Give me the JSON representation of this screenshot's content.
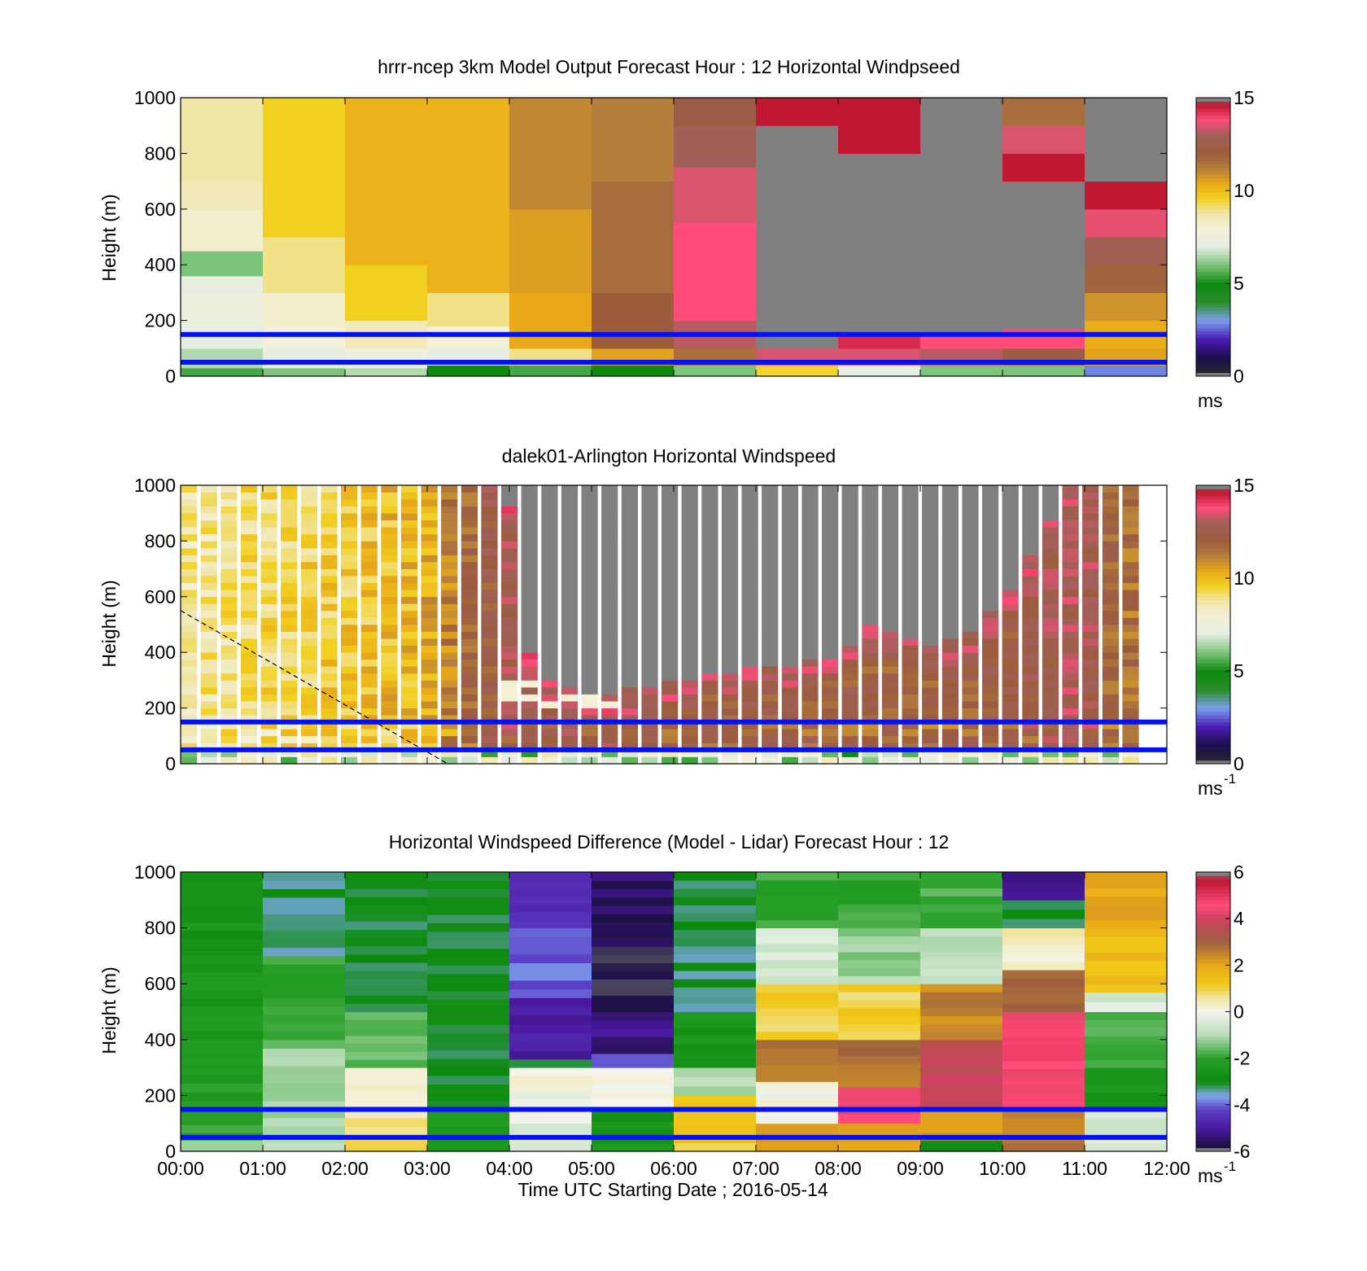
{
  "chart_data": [
    {
      "type": "heatmap",
      "title": "hrrr-ncep 3km Model Output   Forecast Hour : 12 Horizontal Windpseed",
      "ylabel": "Height (m)",
      "xlabel": "",
      "ylim": [
        0,
        1000
      ],
      "yticks": [
        "0",
        "200",
        "400",
        "600",
        "800",
        "1000"
      ],
      "colorbar": {
        "ticks": [
          "0",
          "5",
          "10",
          "15"
        ],
        "range": [
          0,
          15
        ],
        "unit": "ms",
        "unit_sup": ""
      },
      "reference_lines_m": [
        50,
        150
      ],
      "columns": [
        {
          "segments": [
            [
              0,
              30,
              5.5
            ],
            [
              30,
              100,
              6.5
            ],
            [
              100,
              180,
              7.0
            ],
            [
              180,
              300,
              7.5
            ],
            [
              300,
              360,
              7.2
            ],
            [
              360,
              450,
              6.0
            ],
            [
              450,
              600,
              8.2
            ],
            [
              600,
              700,
              8.5
            ],
            [
              700,
              1000,
              8.8
            ]
          ]
        },
        {
          "segments": [
            [
              0,
              30,
              6.0
            ],
            [
              30,
              100,
              7.0
            ],
            [
              100,
              180,
              7.8
            ],
            [
              180,
              300,
              8.2
            ],
            [
              300,
              500,
              9.0
            ],
            [
              500,
              1000,
              9.6
            ]
          ]
        },
        {
          "segments": [
            [
              0,
              30,
              6.5
            ],
            [
              30,
              100,
              7.5
            ],
            [
              100,
              200,
              8.5
            ],
            [
              200,
              400,
              9.6
            ],
            [
              400,
              1000,
              10.2
            ]
          ]
        },
        {
          "segments": [
            [
              0,
              40,
              5.0
            ],
            [
              40,
              100,
              7.0
            ],
            [
              100,
              180,
              8.0
            ],
            [
              180,
              300,
              9.0
            ],
            [
              300,
              1000,
              10.2
            ]
          ]
        },
        {
          "segments": [
            [
              0,
              40,
              5.5
            ],
            [
              40,
              100,
              9.0
            ],
            [
              100,
              300,
              10.4
            ],
            [
              300,
              600,
              10.6
            ],
            [
              600,
              1000,
              11.0
            ]
          ]
        },
        {
          "segments": [
            [
              0,
              40,
              5.0
            ],
            [
              40,
              100,
              10.5
            ],
            [
              100,
              300,
              12.0
            ],
            [
              300,
              700,
              11.6
            ],
            [
              700,
              1000,
              11.2
            ]
          ]
        },
        {
          "segments": [
            [
              0,
              40,
              6.0
            ],
            [
              40,
              100,
              11.5
            ],
            [
              100,
              200,
              13.2
            ],
            [
              200,
              550,
              13.8
            ],
            [
              550,
              750,
              13.5
            ],
            [
              750,
              900,
              13.0
            ],
            [
              900,
              1000,
              12.3
            ]
          ]
        },
        {
          "segments": [
            [
              0,
              40,
              9.5
            ],
            [
              40,
              100,
              13.5
            ],
            [
              100,
              900,
              15.5
            ],
            [
              900,
              1000,
              14.6
            ]
          ]
        },
        {
          "segments": [
            [
              0,
              40,
              7.0
            ],
            [
              40,
              100,
              13.5
            ],
            [
              100,
              150,
              14.3
            ],
            [
              150,
              800,
              15.5
            ],
            [
              800,
              1000,
              14.6
            ]
          ]
        },
        {
          "segments": [
            [
              0,
              40,
              6.0
            ],
            [
              40,
              100,
              13.2
            ],
            [
              100,
              150,
              13.8
            ],
            [
              150,
              1000,
              15.5
            ]
          ]
        },
        {
          "segments": [
            [
              0,
              40,
              6.0
            ],
            [
              40,
              100,
              12.3
            ],
            [
              100,
              170,
              13.8
            ],
            [
              170,
              700,
              15.5
            ],
            [
              700,
              800,
              14.6
            ],
            [
              800,
              900,
              13.5
            ],
            [
              900,
              1000,
              11.6
            ]
          ]
        },
        {
          "segments": [
            [
              0,
              40,
              2.8
            ],
            [
              40,
              100,
              10.5
            ],
            [
              100,
              200,
              10.3
            ],
            [
              200,
              300,
              10.8
            ],
            [
              300,
              400,
              11.8
            ],
            [
              400,
              500,
              12.8
            ],
            [
              500,
              600,
              13.6
            ],
            [
              600,
              700,
              14.6
            ],
            [
              700,
              1000,
              15.5
            ]
          ]
        }
      ]
    },
    {
      "type": "heatmap",
      "title": "dalek01-Arlington  Horizontal Windspeed",
      "ylabel": "Height (m)",
      "xlabel": "",
      "ylim": [
        0,
        1000
      ],
      "yticks": [
        "0",
        "200",
        "400",
        "600",
        "800",
        "1000"
      ],
      "colorbar": {
        "ticks": [
          "0",
          "5",
          "10",
          "15"
        ],
        "range": [
          0,
          15
        ],
        "unit": "ms",
        "unit_sup": "-1"
      },
      "reference_lines_m": [
        50,
        150
      ],
      "dashed_line": {
        "x": [
          0,
          3.25
        ],
        "y": [
          550,
          0
        ]
      },
      "profile_count": 48,
      "profile_anchors": [
        {
          "t": 0.0,
          "speed": 9.5,
          "gray_from": 1100
        },
        {
          "t": 1.0,
          "speed": 10.0,
          "gray_from": 1100
        },
        {
          "t": 2.0,
          "speed": 10.4,
          "gray_from": 1100
        },
        {
          "t": 3.0,
          "speed": 11.0,
          "gray_from": 1100
        },
        {
          "t": 3.5,
          "speed": 12.6,
          "gray_from": 1100
        },
        {
          "t": 4.0,
          "speed": 13.6,
          "gray_from": 960
        },
        {
          "t": 4.3,
          "speed": 13.6,
          "gray_from": 330
        },
        {
          "t": 5.0,
          "speed": 13.3,
          "gray_from": 215
        },
        {
          "t": 6.0,
          "speed": 13.2,
          "gray_from": 290
        },
        {
          "t": 7.0,
          "speed": 13.0,
          "gray_from": 330
        },
        {
          "t": 8.0,
          "speed": 13.0,
          "gray_from": 360
        },
        {
          "t": 8.5,
          "speed": 12.8,
          "gray_from": 500
        },
        {
          "t": 9.0,
          "speed": 12.8,
          "gray_from": 410
        },
        {
          "t": 9.5,
          "speed": 12.8,
          "gray_from": 430
        },
        {
          "t": 10.0,
          "speed": 13.0,
          "gray_from": 560
        },
        {
          "t": 10.5,
          "speed": 13.4,
          "gray_from": 800
        },
        {
          "t": 11.0,
          "speed": 13.8,
          "gray_from": 1100
        },
        {
          "t": 11.5,
          "speed": 12.2,
          "gray_from": 1100
        },
        {
          "t": 12.0,
          "speed": 13.0,
          "gray_from": 1100
        }
      ]
    },
    {
      "type": "heatmap",
      "title": "Horizontal Windspeed Difference (Model - Lidar) Forecast Hour : 12",
      "ylabel": "Height (m)",
      "xlabel": "Time UTC  Starting Date ; 2016-05-14",
      "ylim": [
        0,
        1000
      ],
      "yticks": [
        "0",
        "200",
        "400",
        "600",
        "800",
        "1000"
      ],
      "colorbar": {
        "ticks": [
          "-6",
          "-4",
          "-2",
          "0",
          "2",
          "4",
          "6"
        ],
        "range": [
          -6,
          6
        ],
        "unit": "ms",
        "unit_sup": "-1"
      },
      "reference_lines_m": [
        50,
        150
      ],
      "columns": [
        {
          "segments": [
            [
              0,
              40,
              -1.0
            ],
            [
              40,
              150,
              -2.0
            ],
            [
              150,
              400,
              -2.2
            ],
            [
              400,
              700,
              -2.4
            ],
            [
              700,
              1000,
              -2.6
            ]
          ]
        },
        {
          "segments": [
            [
              0,
              150,
              -1.0
            ],
            [
              150,
              400,
              -1.3
            ],
            [
              400,
              700,
              -2.0
            ],
            [
              700,
              1000,
              -3.2
            ]
          ]
        },
        {
          "segments": [
            [
              0,
              60,
              0.8
            ],
            [
              60,
              150,
              0.6
            ],
            [
              150,
              300,
              0.0
            ],
            [
              300,
              500,
              -1.6
            ],
            [
              500,
              1000,
              -3.0
            ]
          ]
        },
        {
          "segments": [
            [
              0,
              60,
              -2.6
            ],
            [
              60,
              150,
              -2.4
            ],
            [
              150,
              1000,
              -3.0
            ]
          ]
        },
        {
          "segments": [
            [
              0,
              100,
              -0.4
            ],
            [
              100,
              300,
              0.0
            ],
            [
              300,
              330,
              -3.0
            ],
            [
              330,
              550,
              -5.0
            ],
            [
              550,
              800,
              -4.0
            ],
            [
              800,
              1000,
              -4.5
            ]
          ]
        },
        {
          "segments": [
            [
              0,
              80,
              -2.5
            ],
            [
              80,
              160,
              -2.5
            ],
            [
              160,
              300,
              0.0
            ],
            [
              300,
              350,
              -4.0
            ],
            [
              350,
              500,
              -5.2
            ],
            [
              500,
              850,
              -5.8
            ],
            [
              850,
              1000,
              -5.5
            ]
          ]
        },
        {
          "segments": [
            [
              0,
              150,
              1.2
            ],
            [
              150,
              200,
              1.5
            ],
            [
              200,
              300,
              -1.0
            ],
            [
              300,
              500,
              -2.5
            ],
            [
              500,
              1000,
              -3.2
            ]
          ]
        },
        {
          "segments": [
            [
              0,
              100,
              2.0
            ],
            [
              100,
              250,
              0.0
            ],
            [
              250,
              400,
              2.6
            ],
            [
              400,
              600,
              1.0
            ],
            [
              600,
              800,
              -0.5
            ],
            [
              800,
              1000,
              -2.0
            ]
          ]
        },
        {
          "segments": [
            [
              0,
              100,
              2.2
            ],
            [
              100,
              230,
              4.6
            ],
            [
              230,
              400,
              2.8
            ],
            [
              400,
              600,
              1.0
            ],
            [
              600,
              800,
              -1.2
            ],
            [
              800,
              1000,
              -2.0
            ]
          ]
        },
        {
          "segments": [
            [
              0,
              40,
              -2.8
            ],
            [
              40,
              150,
              2.0
            ],
            [
              150,
              400,
              3.8
            ],
            [
              400,
              600,
              2.5
            ],
            [
              600,
              800,
              -0.8
            ],
            [
              800,
              1000,
              -1.8
            ]
          ]
        },
        {
          "segments": [
            [
              0,
              150,
              2.6
            ],
            [
              150,
              500,
              4.6
            ],
            [
              500,
              650,
              3.0
            ],
            [
              650,
              800,
              0.4
            ],
            [
              800,
              900,
              -3.0
            ],
            [
              900,
              1000,
              -5.0
            ]
          ]
        },
        {
          "segments": [
            [
              0,
              150,
              -0.6
            ],
            [
              150,
              300,
              -2.5
            ],
            [
              300,
              500,
              -1.8
            ],
            [
              500,
              570,
              -0.4
            ],
            [
              570,
              800,
              1.5
            ],
            [
              800,
              1000,
              2.0
            ]
          ]
        }
      ],
      "x_ticks": [
        "00:00",
        "01:00",
        "02:00",
        "03:00",
        "04:00",
        "05:00",
        "06:00",
        "07:00",
        "08:00",
        "09:00",
        "10:00",
        "11:00",
        "12:00"
      ]
    }
  ],
  "colors": {
    "speed_colormap": [
      [
        0,
        "#2a2a2a"
      ],
      [
        1,
        "#1a0f4a"
      ],
      [
        2,
        "#4a1ab5"
      ],
      [
        3,
        "#7aa0ee"
      ],
      [
        4,
        "#2a8c2a"
      ],
      [
        5,
        "#0c8a0c"
      ],
      [
        6,
        "#7dc47d"
      ],
      [
        7,
        "#e6efe2"
      ],
      [
        8,
        "#f4f0d8"
      ],
      [
        8.8,
        "#f0e6a8"
      ],
      [
        9.6,
        "#f2d020"
      ],
      [
        10.4,
        "#e8a818"
      ],
      [
        11.2,
        "#b47e3c"
      ],
      [
        12,
        "#9c5c3c"
      ],
      [
        13,
        "#a06058"
      ],
      [
        13.8,
        "#ff4c7a"
      ],
      [
        14.6,
        "#c01832"
      ],
      [
        15.5,
        "#808080"
      ]
    ],
    "diff_colormap": [
      [
        -6.2,
        "#808080"
      ],
      [
        -5.8,
        "#1a1040"
      ],
      [
        -5,
        "#4a18a0"
      ],
      [
        -4.2,
        "#5c40c8"
      ],
      [
        -3.6,
        "#80a8f0"
      ],
      [
        -3,
        "#0c8a0c"
      ],
      [
        -2,
        "#28a028"
      ],
      [
        -1,
        "#b8ddb8"
      ],
      [
        0,
        "#f5f5f0"
      ],
      [
        0.6,
        "#f0e6a0"
      ],
      [
        1.2,
        "#f0c818"
      ],
      [
        2,
        "#e8a818"
      ],
      [
        3,
        "#9c6040"
      ],
      [
        4,
        "#d04060"
      ],
      [
        4.6,
        "#ff4c7a"
      ],
      [
        5.6,
        "#c01832"
      ],
      [
        6.2,
        "#808080"
      ]
    ],
    "reference_line": "#0010ff"
  }
}
